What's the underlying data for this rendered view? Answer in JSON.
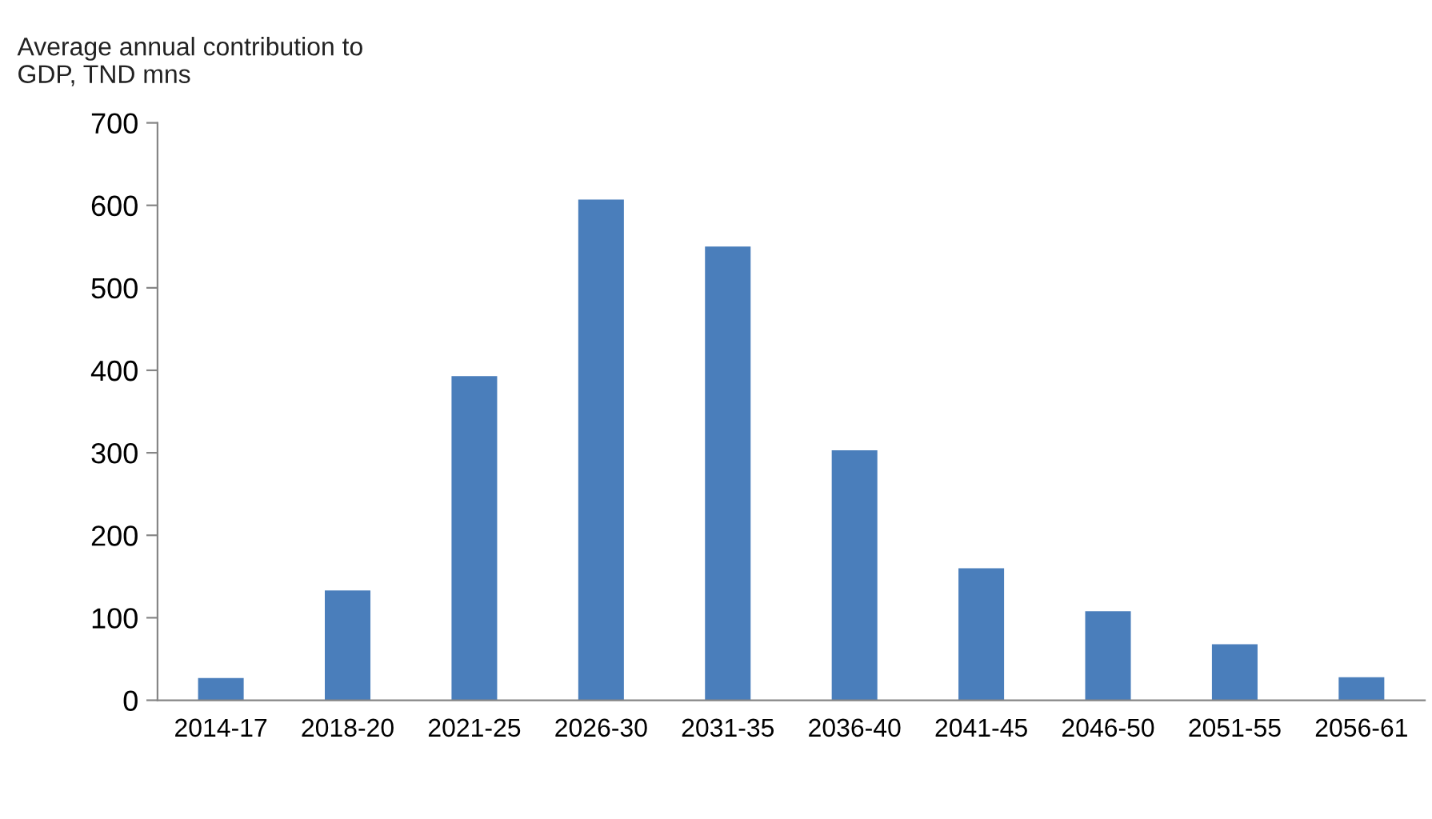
{
  "chart_data": {
    "type": "bar",
    "title": "Average annual contribution to\nGDP, TND mns",
    "categories": [
      "2014-17",
      "2018-20",
      "2021-25",
      "2026-30",
      "2031-35",
      "2036-40",
      "2041-45",
      "2046-50",
      "2051-55",
      "2056-61"
    ],
    "values": [
      27,
      133,
      393,
      607,
      550,
      303,
      160,
      108,
      68,
      28
    ],
    "color": "#4a7ebb",
    "ylim": [
      0,
      700
    ],
    "yticks": [
      0,
      100,
      200,
      300,
      400,
      500,
      600,
      700
    ],
    "grid": false,
    "legend": false
  }
}
